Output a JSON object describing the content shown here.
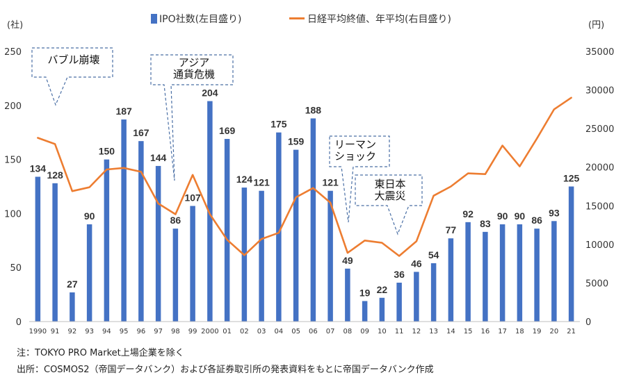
{
  "chart_data": {
    "type": "bar+line",
    "categories": [
      "1990",
      "91",
      "92",
      "93",
      "94",
      "95",
      "96",
      "97",
      "98",
      "99",
      "2000",
      "01",
      "02",
      "03",
      "04",
      "05",
      "06",
      "07",
      "08",
      "09",
      "10",
      "11",
      "12",
      "13",
      "14",
      "15",
      "16",
      "17",
      "18",
      "19",
      "20",
      "21"
    ],
    "series": [
      {
        "name": "IPO社数(左目盛り)",
        "type": "bar",
        "axis": "left",
        "color": "#4472c4",
        "values": [
          134,
          128,
          27,
          90,
          150,
          187,
          167,
          144,
          86,
          107,
          204,
          169,
          124,
          121,
          175,
          159,
          188,
          121,
          49,
          19,
          22,
          36,
          46,
          54,
          77,
          92,
          83,
          90,
          90,
          86,
          93,
          125
        ]
      },
      {
        "name": "日経平均終値、年平均(右目盛り)",
        "type": "line",
        "axis": "right",
        "color": "#ed7d31",
        "values": [
          23800,
          23000,
          16900,
          17400,
          19700,
          19900,
          19400,
          15300,
          13900,
          19000,
          13900,
          10600,
          8600,
          10700,
          11500,
          16100,
          17300,
          15400,
          8900,
          10500,
          10200,
          8500,
          10400,
          16300,
          17500,
          19200,
          19100,
          22800,
          20100,
          23700,
          27500,
          29000
        ]
      }
    ],
    "y_left": {
      "unit": "(社)",
      "ylim": [
        0,
        250
      ],
      "ticks": [
        "0",
        "50",
        "100",
        "150",
        "200",
        "250"
      ]
    },
    "y_right": {
      "unit": "(円)",
      "ylim": [
        0,
        35000
      ],
      "ticks": [
        "0",
        "5000",
        "10000",
        "15000",
        "20000",
        "25000",
        "30000",
        "35000"
      ]
    },
    "grid": false,
    "legend_position": "top",
    "annotations": [
      {
        "text": "バブル崩壊",
        "category": "91"
      },
      {
        "text": "アジア\n通貨危機",
        "category": "98"
      },
      {
        "text": "リーマン\nショック",
        "category": "08"
      },
      {
        "text": "東日本\n大震災",
        "category": "11"
      }
    ]
  },
  "notes": {
    "note1": "注：TOKYO PRO Market上場企業を除く",
    "source": "出所：COSMOS2（帝国データバンク）および各証券取引所の発表資料をもとに帝国データバンク作成"
  }
}
